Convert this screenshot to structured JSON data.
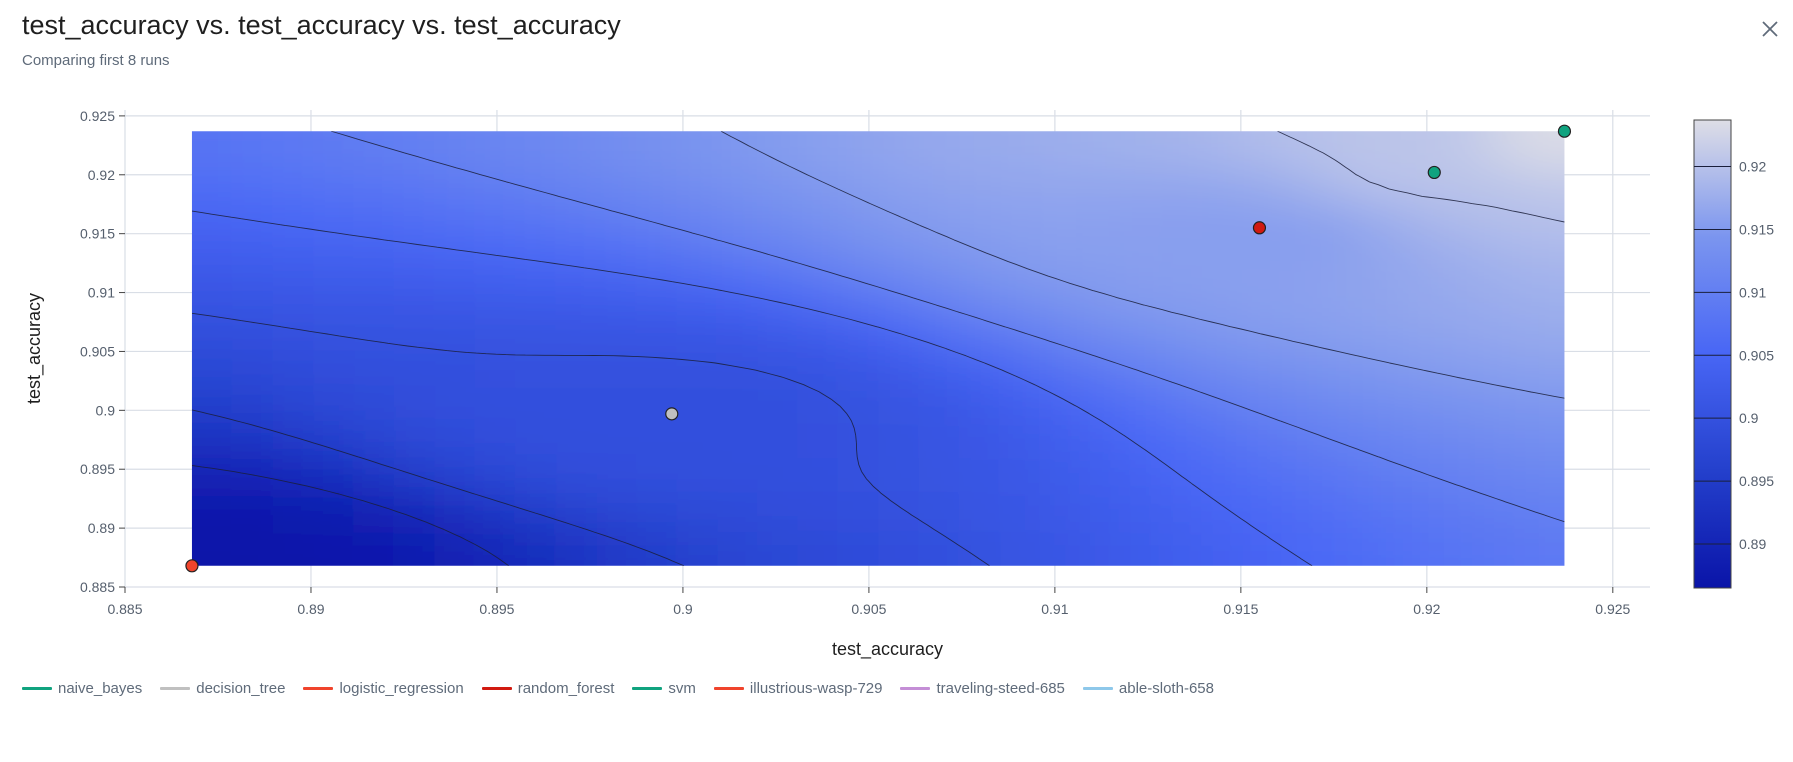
{
  "header": {
    "title": "test_accuracy vs. test_accuracy vs. test_accuracy",
    "subtitle": "Comparing first 8 runs"
  },
  "icons": {
    "close": "close-icon"
  },
  "legend": [
    {
      "label": "naive_bayes",
      "color": "#10a37f"
    },
    {
      "label": "decision_tree",
      "color": "#c0c0c0"
    },
    {
      "label": "logistic_regression",
      "color": "#f0442c"
    },
    {
      "label": "random_forest",
      "color": "#d11a10"
    },
    {
      "label": "svm",
      "color": "#10a37f"
    },
    {
      "label": "illustrious-wasp-729",
      "color": "#f0442c"
    },
    {
      "label": "traveling-steed-685",
      "color": "#c48ed6"
    },
    {
      "label": "able-sloth-658",
      "color": "#8ec8ea"
    }
  ],
  "chart_data": {
    "type": "contour",
    "xlabel": "test_accuracy",
    "ylabel": "test_accuracy",
    "xlim": [
      0.885,
      0.926
    ],
    "ylim": [
      0.885,
      0.9255
    ],
    "x_ticks": [
      "0.885",
      "0.89",
      "0.895",
      "0.9",
      "0.905",
      "0.91",
      "0.915",
      "0.92",
      "0.925"
    ],
    "y_ticks": [
      "0.885",
      "0.89",
      "0.895",
      "0.9",
      "0.905",
      "0.91",
      "0.915",
      "0.92",
      "0.925"
    ],
    "colorbar": {
      "range": [
        0.8865,
        0.9237
      ],
      "ticks": [
        "0.89",
        "0.895",
        "0.9",
        "0.905",
        "0.91",
        "0.915",
        "0.92"
      ],
      "colorscale": [
        "#0a14a8",
        "#2440cc",
        "#4866f5",
        "#7b95ef",
        "#dedee6"
      ]
    },
    "contour_region": {
      "x": [
        0.8868,
        0.9237
      ],
      "y": [
        0.8868,
        0.9237
      ]
    },
    "contour_levels": [
      0.89,
      0.895,
      0.9,
      0.905,
      0.91,
      0.915,
      0.92
    ],
    "points": [
      {
        "x": 0.8868,
        "y": 0.8868,
        "z": 0.8868,
        "color": "#f0442c"
      },
      {
        "x": 0.8997,
        "y": 0.8997,
        "z": 0.8997,
        "color": "#c0c0c0"
      },
      {
        "x": 0.9155,
        "y": 0.9155,
        "z": 0.9155,
        "color": "#d11a10"
      },
      {
        "x": 0.9202,
        "y": 0.9202,
        "z": 0.9202,
        "color": "#10a37f"
      },
      {
        "x": 0.9237,
        "y": 0.9237,
        "z": 0.9237,
        "color": "#10a37f"
      }
    ]
  }
}
